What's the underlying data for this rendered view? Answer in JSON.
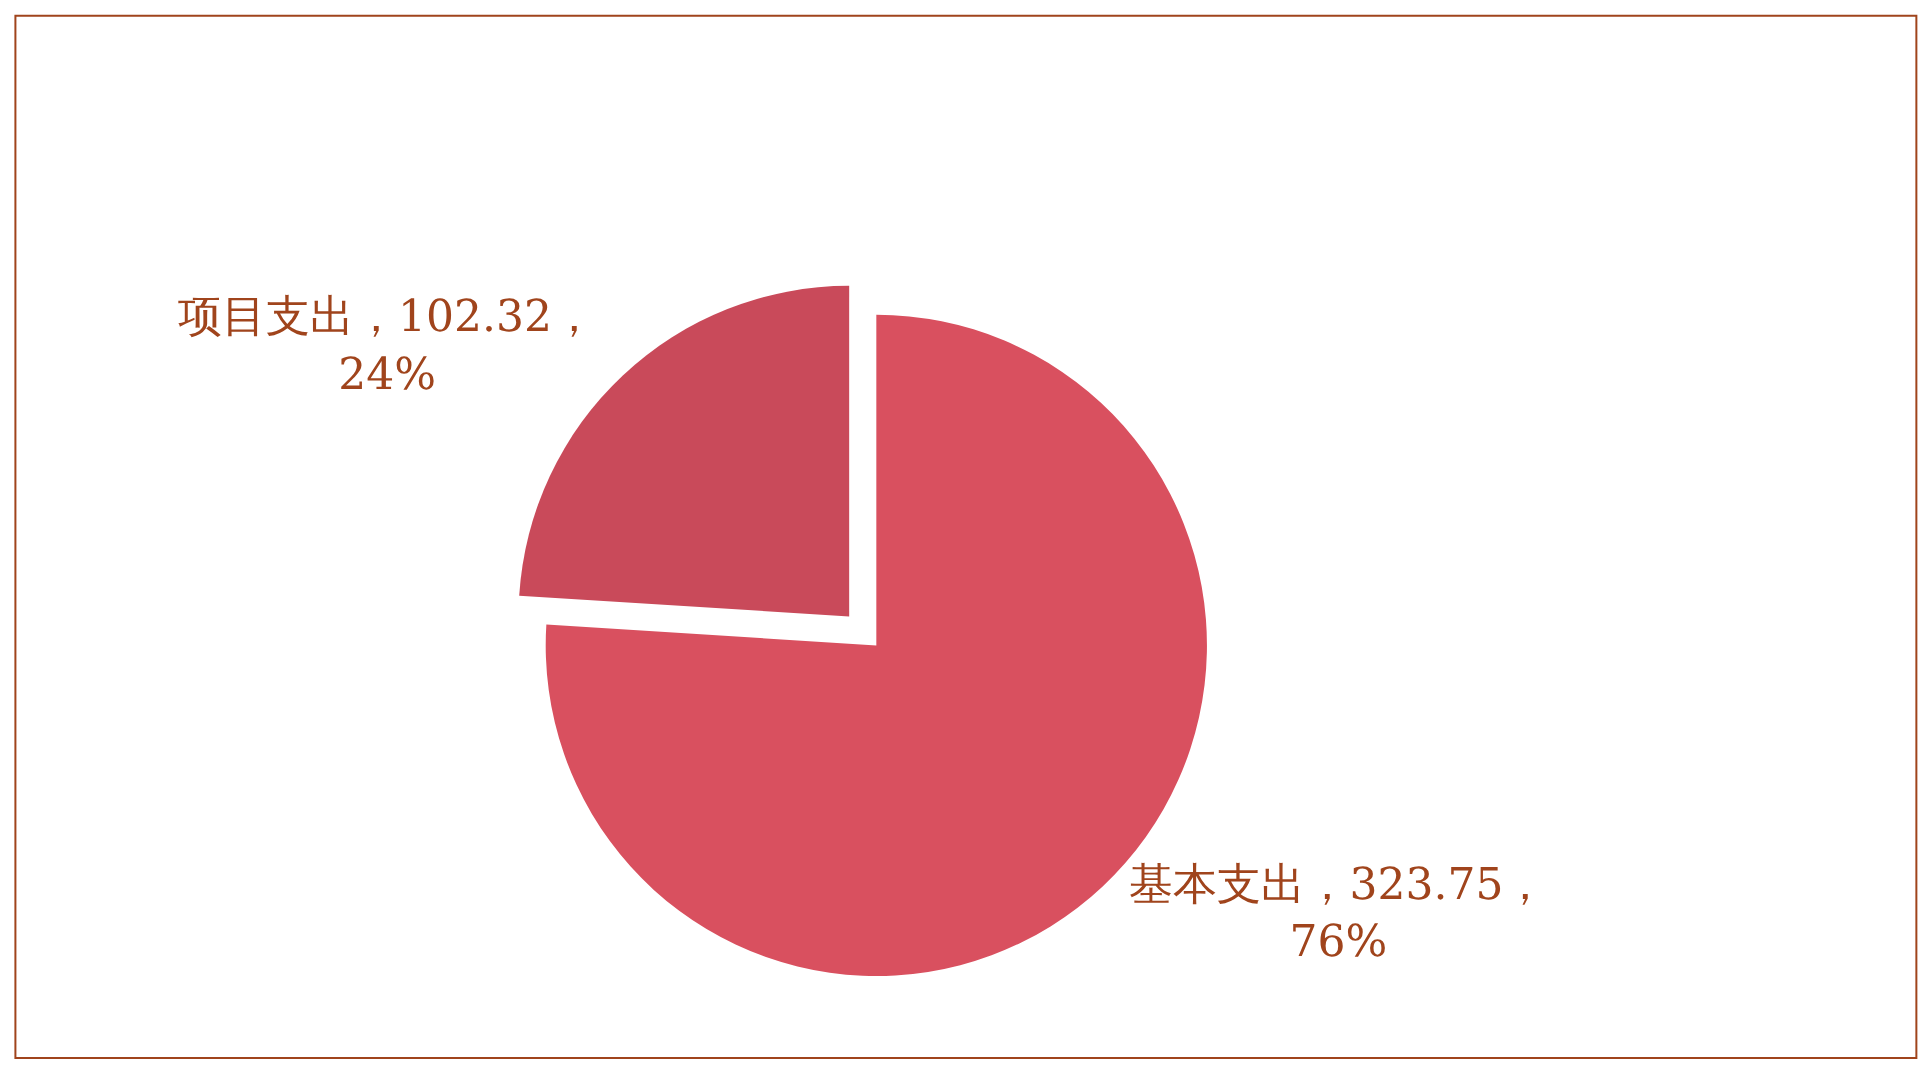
{
  "chart_data": {
    "type": "pie",
    "categories": [
      "基本支出，323.75，76%",
      "项目支出，102.32，24%"
    ],
    "values": [
      76,
      24
    ],
    "colors": [
      "#d9505f",
      "#c94a5a"
    ],
    "legend": false
  }
}
